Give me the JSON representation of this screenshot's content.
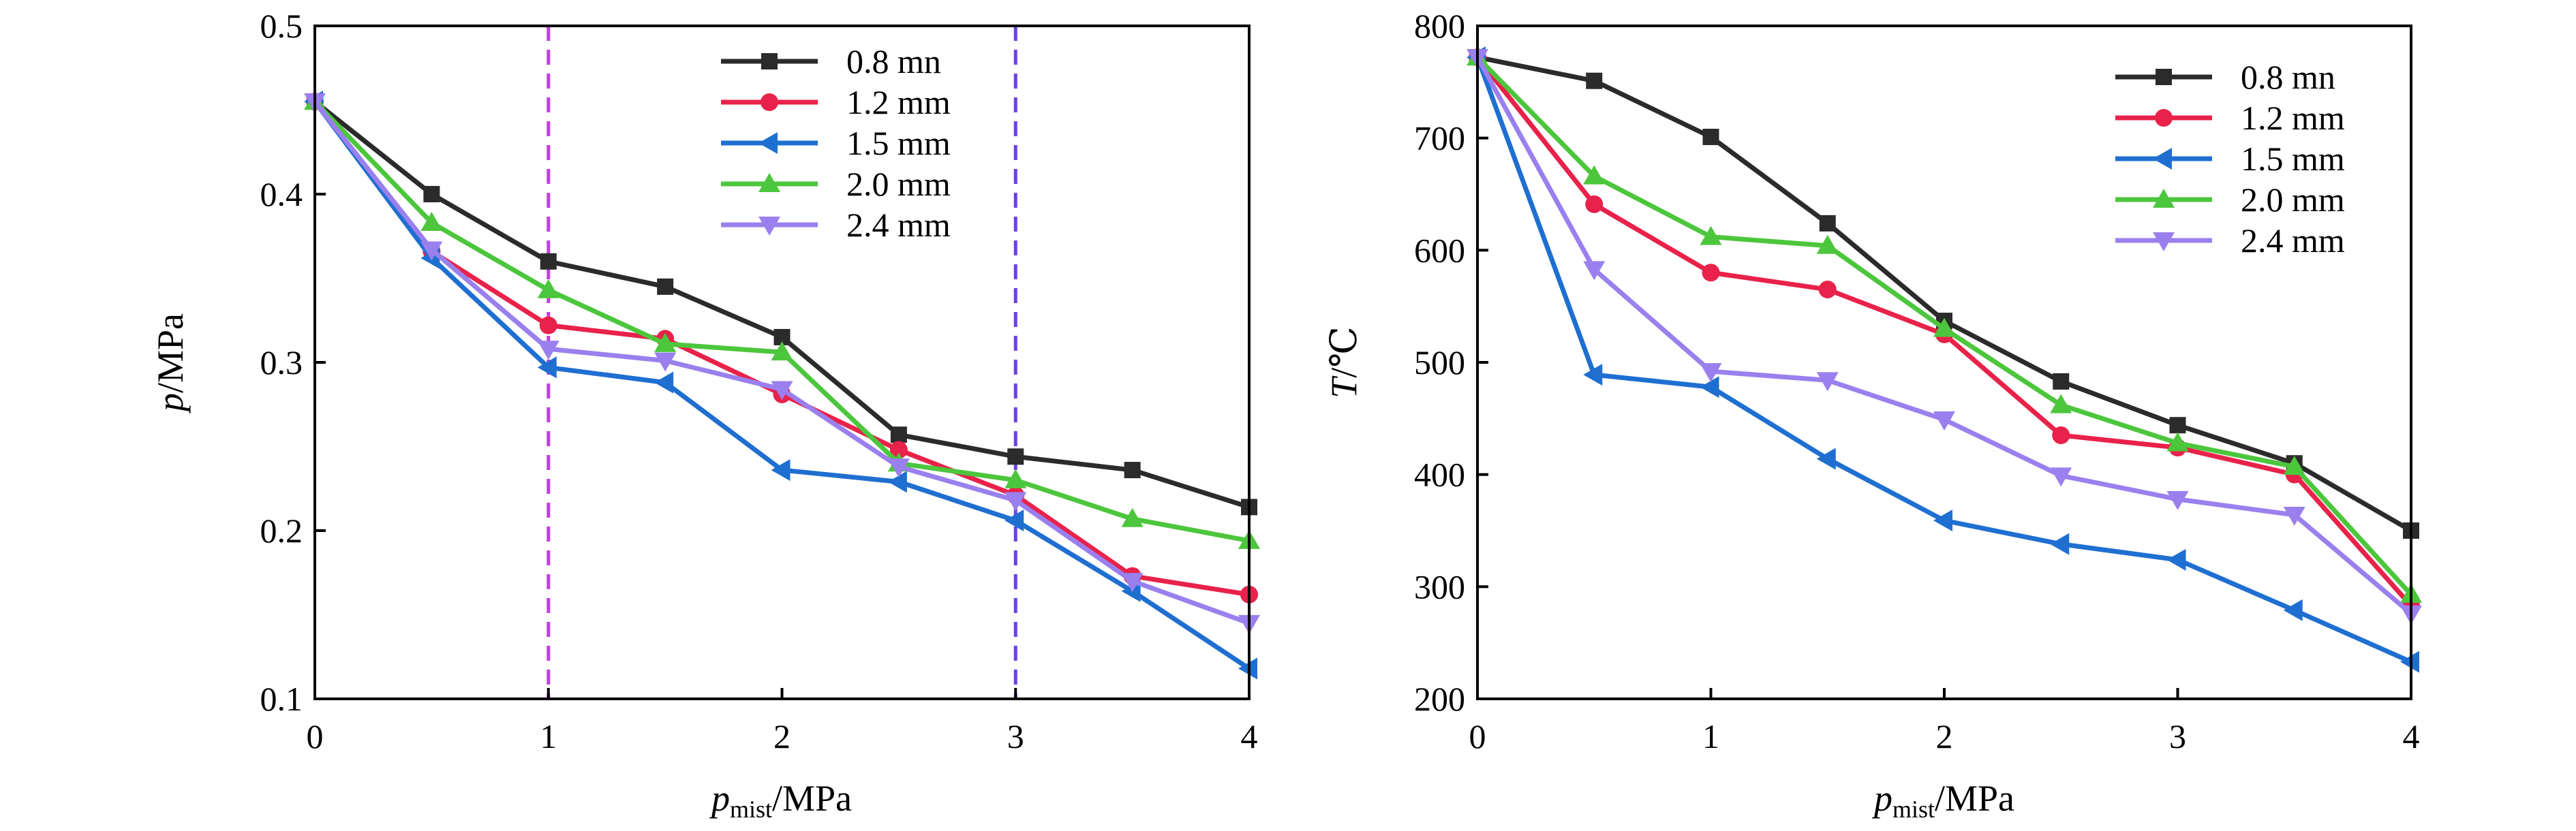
{
  "chart_data": [
    {
      "type": "line",
      "xlabel": {
        "main": "p",
        "sub": "mist",
        "rest": "/MPa"
      },
      "ylabel": {
        "main": "p",
        "rest": "/MPa"
      },
      "xlim": [
        0,
        4
      ],
      "ylim": [
        0.1,
        0.5
      ],
      "x_ticks": [
        "0",
        "1",
        "2",
        "3",
        "4"
      ],
      "y_ticks": [
        "0.1",
        "0.2",
        "0.3",
        "0.4",
        "0.5"
      ],
      "grid": false,
      "legend_position": "top-right",
      "reference_lines": [
        {
          "x": 1,
          "color": "#c040e0",
          "style": "dashed"
        },
        {
          "x": 3,
          "color": "#6a40e8",
          "style": "dashed"
        }
      ],
      "x": [
        0,
        0.5,
        1,
        1.5,
        2,
        2.5,
        3,
        3.5,
        4
      ],
      "series": [
        {
          "name": "0.8 mn",
          "color": "#2b2b2b",
          "marker": "square",
          "values": [
            0.455,
            0.4,
            0.36,
            0.345,
            0.315,
            0.257,
            0.244,
            0.236,
            0.214
          ]
        },
        {
          "name": "1.2 mm",
          "color": "#e8224a",
          "marker": "circle",
          "values": [
            0.455,
            0.366,
            0.322,
            0.314,
            0.281,
            0.248,
            0.221,
            0.173,
            0.162
          ]
        },
        {
          "name": "1.5 mm",
          "color": "#1f6fd1",
          "marker": "triangle-left",
          "values": [
            0.455,
            0.362,
            0.297,
            0.288,
            0.236,
            0.229,
            0.206,
            0.164,
            0.118
          ]
        },
        {
          "name": "2.0 mm",
          "color": "#4cc63c",
          "marker": "triangle-up",
          "values": [
            0.455,
            0.383,
            0.343,
            0.311,
            0.306,
            0.24,
            0.23,
            0.207,
            0.194
          ]
        },
        {
          "name": "2.4 mm",
          "color": "#9a80ee",
          "marker": "triangle-down",
          "values": [
            0.455,
            0.367,
            0.308,
            0.301,
            0.284,
            0.238,
            0.218,
            0.17,
            0.145
          ]
        }
      ]
    },
    {
      "type": "line",
      "xlabel": {
        "main": "p",
        "sub": "mist",
        "rest": "/MPa"
      },
      "ylabel": {
        "main": "T",
        "rest": "/℃"
      },
      "xlim": [
        0,
        4
      ],
      "ylim": [
        200,
        800
      ],
      "x_ticks": [
        "0",
        "1",
        "2",
        "3",
        "4"
      ],
      "y_ticks": [
        "200",
        "300",
        "400",
        "500",
        "600",
        "700",
        "800"
      ],
      "grid": false,
      "legend_position": "top-right",
      "reference_lines": [],
      "x": [
        0,
        0.5,
        1,
        1.5,
        2,
        2.5,
        3,
        3.5,
        4
      ],
      "series": [
        {
          "name": "0.8 mn",
          "color": "#2b2b2b",
          "marker": "square",
          "values": [
            772,
            751,
            701,
            624,
            537,
            483,
            444,
            410,
            350
          ]
        },
        {
          "name": "1.2 mm",
          "color": "#e8224a",
          "marker": "circle",
          "values": [
            772,
            641,
            580,
            565,
            525,
            435,
            424,
            400,
            283
          ]
        },
        {
          "name": "1.5 mm",
          "color": "#1f6fd1",
          "marker": "triangle-left",
          "values": [
            772,
            489,
            478,
            414,
            359,
            338,
            324,
            279,
            233
          ]
        },
        {
          "name": "2.0 mm",
          "color": "#4cc63c",
          "marker": "triangle-up",
          "values": [
            772,
            666,
            612,
            604,
            530,
            462,
            428,
            407,
            293
          ]
        },
        {
          "name": "2.4 mm",
          "color": "#9a80ee",
          "marker": "triangle-down",
          "values": [
            772,
            583,
            492,
            484,
            449,
            399,
            378,
            364,
            276
          ]
        }
      ]
    }
  ]
}
